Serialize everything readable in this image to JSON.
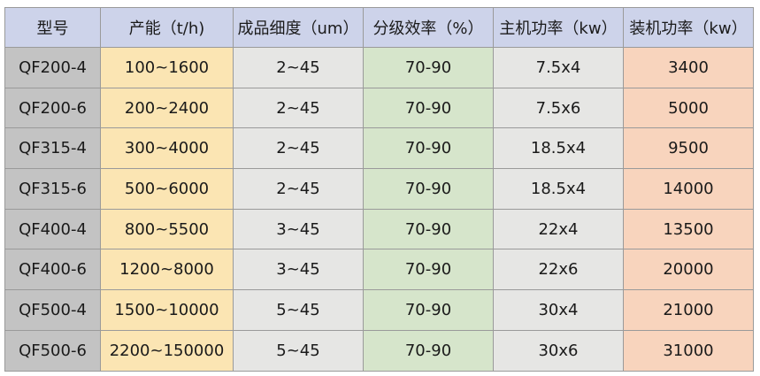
{
  "headers": [
    "型号",
    "产能（t/h)",
    "成品细度（um）",
    "分级效率（%）",
    "主机功率（kw）",
    "装机功率（kw）"
  ],
  "rows": [
    [
      "QF200-4",
      "100~1600",
      "2~45",
      "70-90",
      "7.5x4",
      "3400"
    ],
    [
      "QF200-6",
      "200~2400",
      "2~45",
      "70-90",
      "7.5x6",
      "5000"
    ],
    [
      "QF315-4",
      "300~4000",
      "2~45",
      "70-90",
      "18.5x4",
      "9500"
    ],
    [
      "QF315-6",
      "500~6000",
      "2~45",
      "70-90",
      "18.5x4",
      "14000"
    ],
    [
      "QF400-4",
      "800~5500",
      "3~45",
      "70-90",
      "22x4",
      "13500"
    ],
    [
      "QF400-6",
      "1200~8000",
      "3~45",
      "70-90",
      "22x6",
      "20000"
    ],
    [
      "QF500-4",
      "1500~10000",
      "5~45",
      "70-90",
      "30x4",
      "21000"
    ],
    [
      "QF500-6",
      "2200~150000",
      "5~45",
      "70-90",
      "30x6",
      "31000"
    ]
  ],
  "colors": {
    "header": "#cdd3ea",
    "model_column": "#c3c3c3",
    "capacity_column": "#fbe5b3",
    "fineness_column": "#e6e6e4",
    "efficiency_column": "#d6e5cb",
    "main_power_column": "#e6e6e4",
    "installed_power_column": "#f8d4bd"
  }
}
